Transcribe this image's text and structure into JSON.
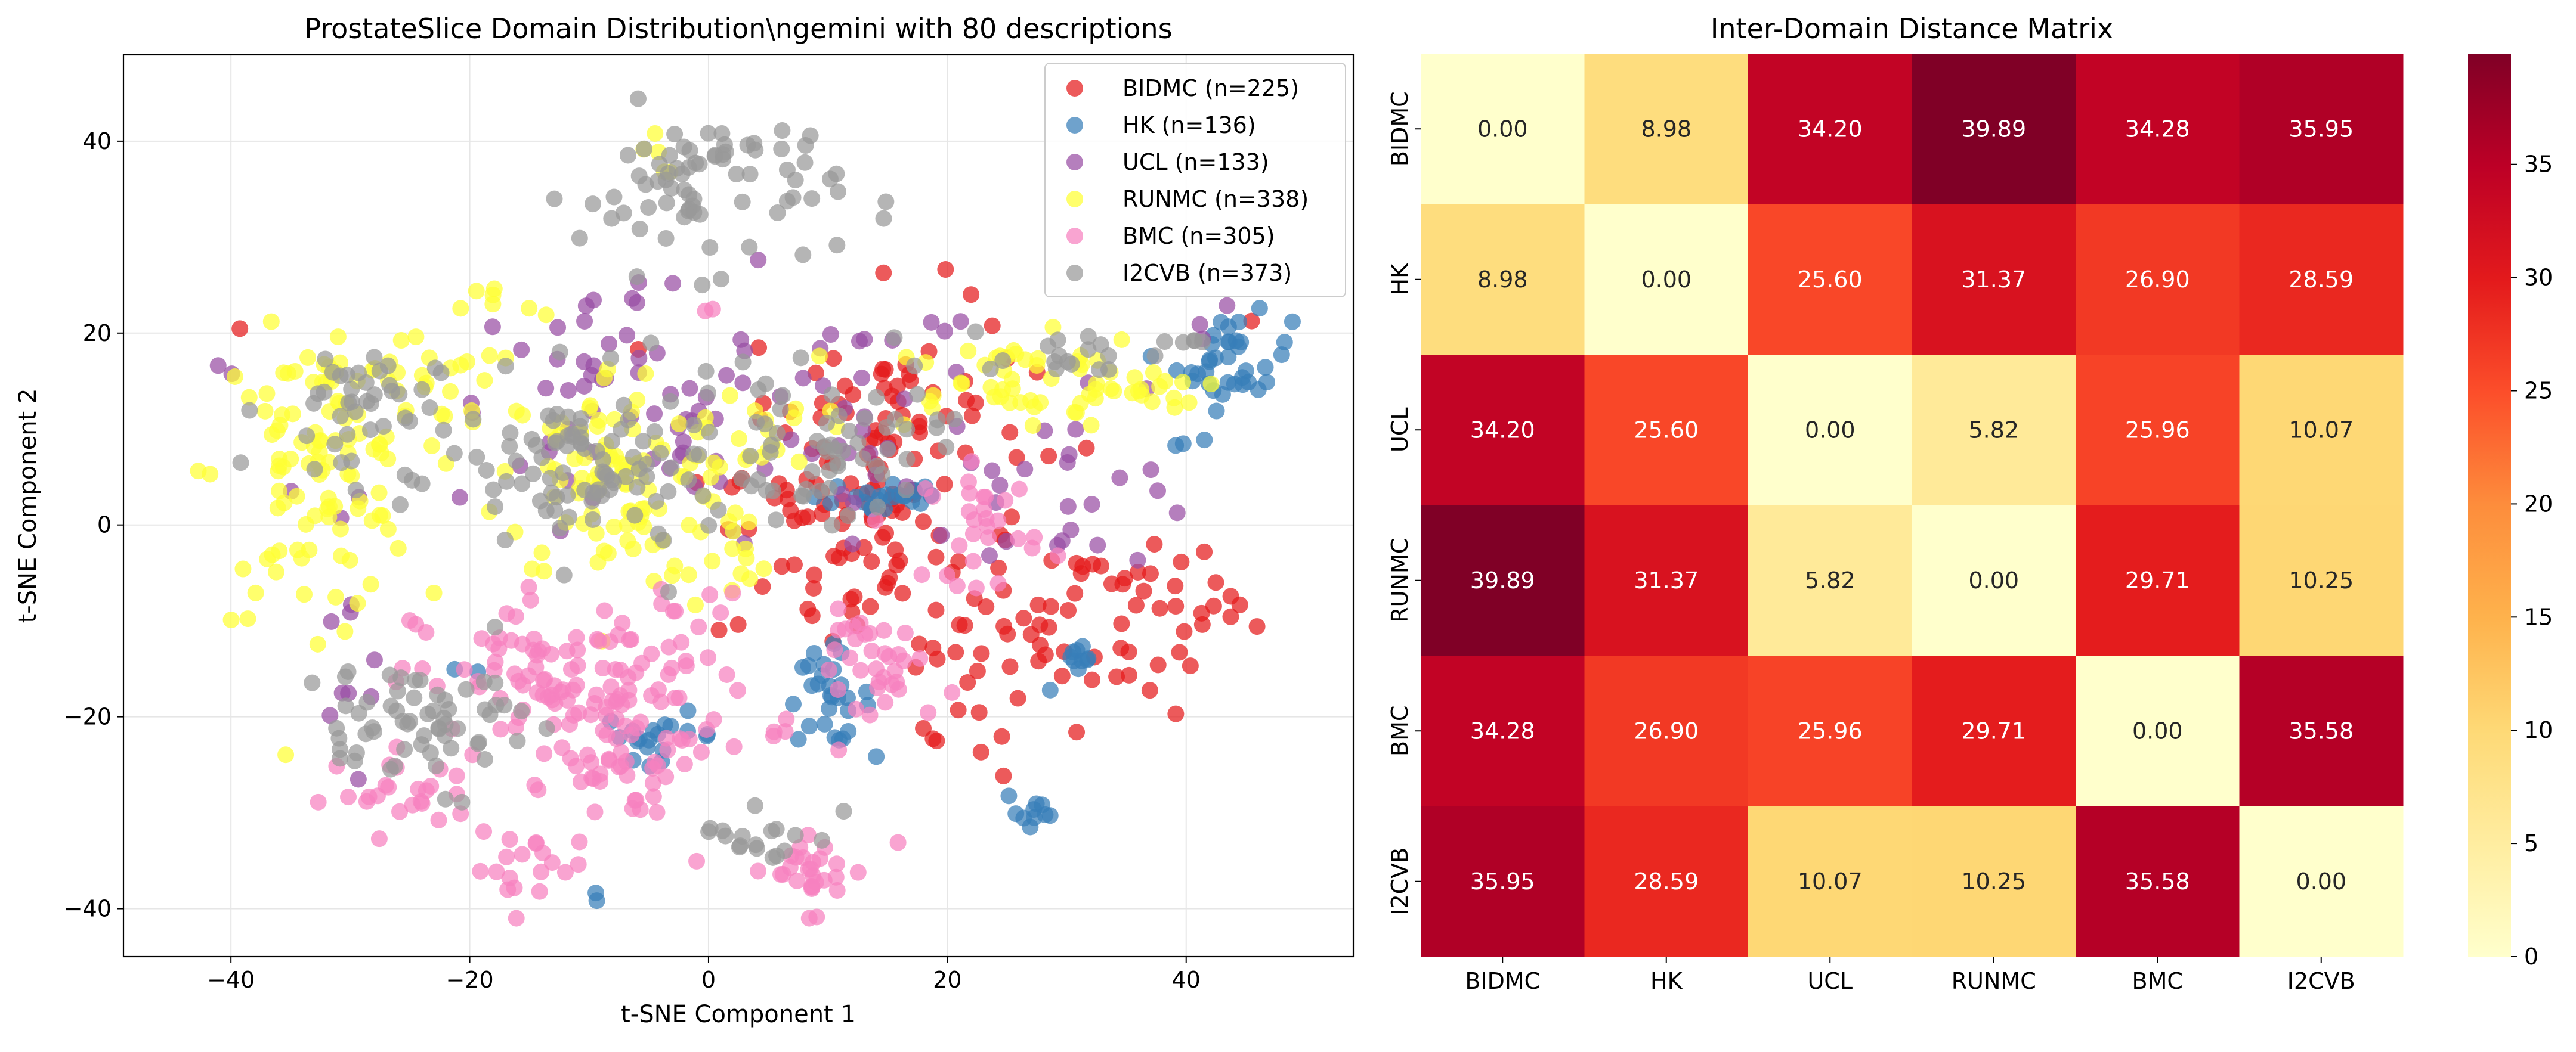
{
  "chart_data": [
    {
      "type": "scatter",
      "title": "ProstateSlice Domain Distribution\\ngemini with 80 descriptions",
      "xlabel": "t-SNE Component 1",
      "ylabel": "t-SNE Component 2",
      "xlim": [
        -49,
        54
      ],
      "ylim": [
        -45,
        49
      ],
      "xticks": [
        -40,
        -20,
        0,
        20,
        40
      ],
      "yticks": [
        -40,
        -20,
        0,
        20,
        40
      ],
      "grid": true,
      "legend_position": "top-right",
      "series": [
        {
          "name": "BIDMC (n=225)",
          "count": 225,
          "color": "#e41a1c",
          "clusters": [
            [
              26,
              -12,
              7,
              9
            ],
            [
              37,
              -10,
              5,
              8
            ],
            [
              44,
              -9,
              4,
              2
            ],
            [
              19,
              -23,
              3,
              2
            ],
            [
              -39,
              21,
              1,
              1
            ],
            [
              46,
              22,
              2,
              1
            ],
            [
              10,
              -2,
              8,
              10
            ],
            [
              15,
              10,
              10,
              12
            ],
            [
              22,
              24,
              3,
              1
            ]
          ]
        },
        {
          "name": "HK (n=136)",
          "count": 136,
          "color": "#377eb8",
          "clusters": [
            [
              44,
              17,
              4,
              4
            ],
            [
              27,
              -30,
              2,
              2
            ],
            [
              -4,
              -22,
              4,
              2
            ],
            [
              10,
              -18,
              3,
              4
            ],
            [
              31,
              -15,
              2,
              2
            ],
            [
              40,
              9,
              1,
              1
            ],
            [
              -10,
              -39,
              1,
              1
            ],
            [
              15,
              3,
              5,
              2
            ],
            [
              -20,
              -15,
              1,
              1
            ]
          ]
        },
        {
          "name": "UCL (n=133)",
          "count": 133,
          "color": "#984ea3",
          "clusters": [
            [
              -40,
              16,
              3,
              2
            ],
            [
              -30,
              -15,
              3,
              8
            ],
            [
              0,
              10,
              22,
              12
            ],
            [
              30,
              5,
              10,
              8
            ],
            [
              -10,
              20,
              5,
              4
            ],
            [
              42,
              20,
              4,
              2
            ],
            [
              -28,
              -26,
              2,
              2
            ]
          ]
        },
        {
          "name": "RUNMC (n=338)",
          "count": 338,
          "color": "#ffff33",
          "clusters": [
            [
              -33,
              5,
              7,
              12
            ],
            [
              -17,
              23,
              3,
              2
            ],
            [
              -8,
              5,
              8,
              10
            ],
            [
              5,
              10,
              4,
              4
            ],
            [
              25,
              15,
              10,
              4
            ],
            [
              35,
              14,
              5,
              3
            ],
            [
              -5,
              39,
              2,
              2
            ],
            [
              -25,
              15,
              6,
              4
            ],
            [
              0,
              -3,
              4,
              4
            ]
          ]
        },
        {
          "name": "BMC (n=305)",
          "count": 305,
          "color": "#f781bf",
          "clusters": [
            [
              -10,
              -17,
              12,
              8
            ],
            [
              8,
              -36,
              5,
              4
            ],
            [
              -15,
              -36,
              4,
              3
            ],
            [
              -26,
              -28,
              5,
              3
            ],
            [
              15,
              -15,
              5,
              5
            ],
            [
              23,
              0,
              4,
              5
            ],
            [
              -7,
              -26,
              5,
              4
            ],
            [
              0,
              23,
              1,
              1
            ]
          ]
        },
        {
          "name": "I2CVB (n=373)",
          "count": 373,
          "color": "#999999",
          "clusters": [
            [
              0,
              35,
              9,
              7
            ],
            [
              -22,
              -20,
              6,
              6
            ],
            [
              -10,
              5,
              10,
              8
            ],
            [
              10,
              8,
              8,
              6
            ],
            [
              30,
              18,
              8,
              2
            ],
            [
              -30,
              -20,
              3,
              5
            ],
            [
              5,
              -32,
              5,
              3
            ],
            [
              -30,
              12,
              6,
              6
            ],
            [
              40,
              19,
              3,
              2
            ]
          ]
        }
      ]
    },
    {
      "type": "heatmap",
      "title": "Inter-Domain Distance Matrix",
      "labels": [
        "BIDMC",
        "HK",
        "UCL",
        "RUNMC",
        "BMC",
        "I2CVB"
      ],
      "matrix": [
        [
          0.0,
          8.98,
          34.2,
          39.89,
          34.28,
          35.95
        ],
        [
          8.98,
          0.0,
          25.6,
          31.37,
          26.9,
          28.59
        ],
        [
          34.2,
          25.6,
          0.0,
          5.82,
          25.96,
          10.07
        ],
        [
          39.89,
          31.37,
          5.82,
          0.0,
          29.71,
          10.25
        ],
        [
          34.28,
          26.9,
          25.96,
          29.71,
          0.0,
          35.58
        ],
        [
          35.95,
          28.59,
          10.07,
          10.25,
          35.58,
          0.0
        ]
      ],
      "colormap": "YlOrRd",
      "vmin": 0,
      "vmax": 39.89,
      "colorbar_ticks": [
        0,
        5,
        10,
        15,
        20,
        25,
        30,
        35
      ]
    }
  ]
}
